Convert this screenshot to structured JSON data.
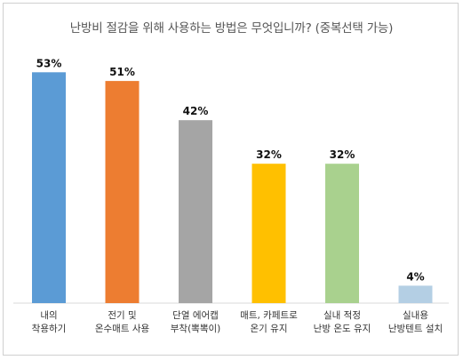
{
  "chart_data": {
    "type": "bar",
    "title": "난방비 절감을 위해 사용하는 방법은 무엇입니까? (중복선택 가능)",
    "categories": [
      [
        "내의",
        "착용하기"
      ],
      [
        "전기 및",
        "온수매트 사용"
      ],
      [
        "단열 에어캡",
        "부착(뽁뽁이)"
      ],
      [
        "매트, 카페트로",
        "온기 유지"
      ],
      [
        "실내 적정",
        "난방 온도 유지"
      ],
      [
        "실내용",
        "난방텐트 설치"
      ]
    ],
    "values": [
      53,
      51,
      42,
      32,
      32,
      4
    ],
    "value_labels": [
      "53%",
      "51%",
      "42%",
      "32%",
      "32%",
      "4%"
    ],
    "colors": [
      "#5b9bd5",
      "#ed7d31",
      "#a5a5a5",
      "#ffc000",
      "#a9d18e",
      "#b4cfe4"
    ],
    "ylim": [
      0,
      55
    ],
    "grid": false,
    "legend": "none"
  }
}
